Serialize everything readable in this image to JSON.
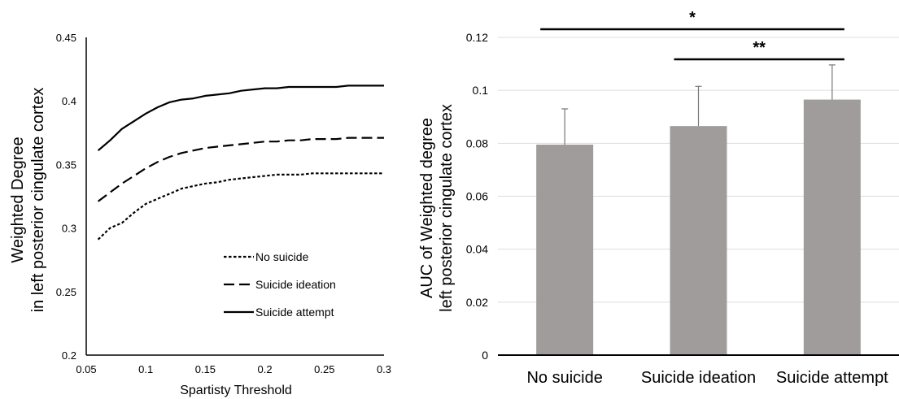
{
  "chart_data": [
    {
      "type": "line",
      "xlabel": "Spartisty Threshold",
      "ylabel_line1": "Weighted Degree",
      "ylabel_line2": "in left posterior cingulate cortex",
      "xlim": [
        0.05,
        0.3
      ],
      "ylim": [
        0.2,
        0.45
      ],
      "x_ticks": [
        0.05,
        0.1,
        0.15,
        0.2,
        0.25,
        0.3
      ],
      "x_tick_labels": [
        "0.05",
        "0.1",
        "0.15",
        "0.2",
        "0.25",
        "0.3"
      ],
      "y_ticks": [
        0.2,
        0.25,
        0.3,
        0.35,
        0.4,
        0.45
      ],
      "y_tick_labels": [
        "0.2",
        "0.25",
        "0.3",
        "0.35",
        "0.4",
        "0.45"
      ],
      "grid": false,
      "legend_position": "lower-right",
      "x": [
        0.06,
        0.07,
        0.08,
        0.09,
        0.1,
        0.11,
        0.12,
        0.13,
        0.14,
        0.15,
        0.16,
        0.17,
        0.18,
        0.19,
        0.2,
        0.21,
        0.22,
        0.23,
        0.24,
        0.25,
        0.26,
        0.27,
        0.28,
        0.29,
        0.3
      ],
      "series": [
        {
          "name": "No suicide",
          "dash": "dotted",
          "values": [
            0.291,
            0.3,
            0.304,
            0.312,
            0.319,
            0.323,
            0.327,
            0.331,
            0.333,
            0.335,
            0.336,
            0.338,
            0.339,
            0.34,
            0.341,
            0.342,
            0.342,
            0.342,
            0.343,
            0.343,
            0.343,
            0.343,
            0.343,
            0.343,
            0.343
          ]
        },
        {
          "name": "Suicide ideation",
          "dash": "dashed",
          "values": [
            0.321,
            0.328,
            0.335,
            0.341,
            0.347,
            0.352,
            0.356,
            0.359,
            0.361,
            0.363,
            0.364,
            0.365,
            0.366,
            0.367,
            0.368,
            0.368,
            0.369,
            0.369,
            0.37,
            0.37,
            0.37,
            0.371,
            0.371,
            0.371,
            0.371
          ]
        },
        {
          "name": "Suicide attempt",
          "dash": "solid",
          "values": [
            0.361,
            0.369,
            0.378,
            0.384,
            0.39,
            0.395,
            0.399,
            0.401,
            0.402,
            0.404,
            0.405,
            0.406,
            0.408,
            0.409,
            0.41,
            0.41,
            0.411,
            0.411,
            0.411,
            0.411,
            0.411,
            0.412,
            0.412,
            0.412,
            0.412
          ]
        }
      ]
    },
    {
      "type": "bar",
      "ylabel_line1": "AUC of Weighted degree",
      "ylabel_line2": "left posterior cingulate cortex",
      "ylim": [
        0,
        0.12
      ],
      "y_ticks": [
        0,
        0.02,
        0.04,
        0.06,
        0.08,
        0.1,
        0.12
      ],
      "y_tick_labels": [
        "0",
        "0.02",
        "0.04",
        "0.06",
        "0.08",
        "0.1",
        "0.12"
      ],
      "grid": true,
      "categories": [
        "No suicide",
        "Suicide ideation",
        "Suicide attempt"
      ],
      "values": [
        0.0795,
        0.0865,
        0.0965
      ],
      "error_upper": [
        0.0135,
        0.015,
        0.0131
      ],
      "bar_color": "#a09c9b",
      "significance": [
        {
          "from": 0,
          "to": 2,
          "label": "*"
        },
        {
          "from": 1,
          "to": 2,
          "label": "**"
        }
      ]
    }
  ]
}
